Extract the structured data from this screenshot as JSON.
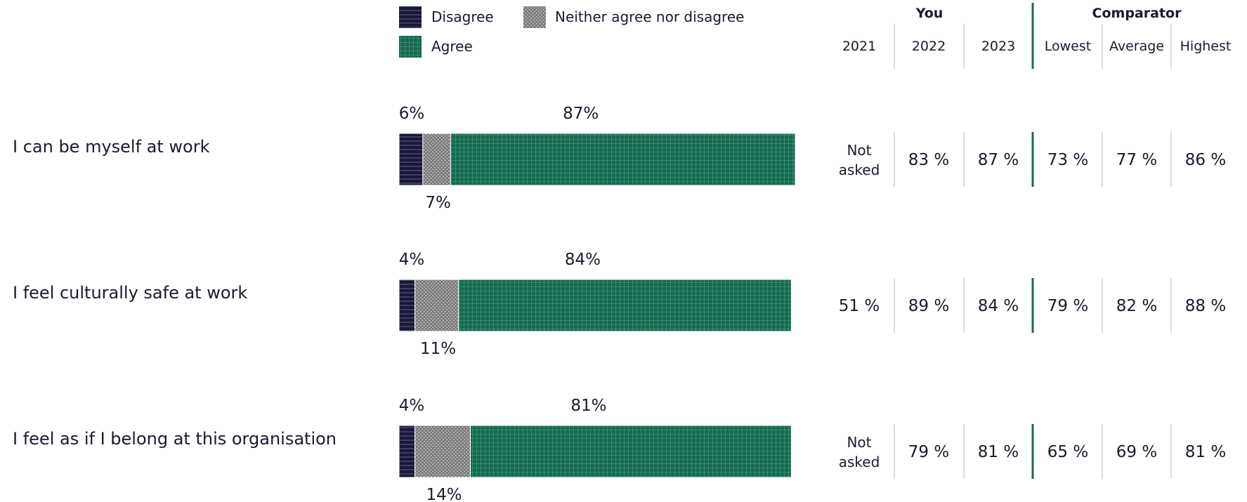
{
  "legend": [
    {
      "key": "disagree",
      "label": "Disagree",
      "color": "#1a1838"
    },
    {
      "key": "neither",
      "label": "Neither agree nor disagree",
      "color": "#808080"
    },
    {
      "key": "agree",
      "label": "Agree",
      "color": "#136b51"
    }
  ],
  "table_header": {
    "you": "You",
    "comparator": "Comparator",
    "columns": [
      "2021",
      "2022",
      "2023",
      "Lowest",
      "Average",
      "Highest"
    ]
  },
  "chart_data": {
    "type": "bar",
    "orientation": "horizontal-stacked-100",
    "categories": [
      "I can be myself at work",
      "I feel culturally safe at work",
      "I feel as if I belong at this organisation"
    ],
    "series": [
      {
        "name": "Disagree",
        "values": [
          6,
          4,
          4
        ]
      },
      {
        "name": "Neither agree nor disagree",
        "values": [
          7,
          11,
          14
        ]
      },
      {
        "name": "Agree",
        "values": [
          87,
          84,
          81
        ]
      }
    ],
    "data_labels": {
      "disagree": [
        "6%",
        "4%",
        "4%"
      ],
      "neither": [
        "7%",
        "11%",
        "14%"
      ],
      "agree": [
        "87%",
        "84%",
        "81%"
      ]
    },
    "xlim": [
      0,
      100
    ],
    "legend_position": "top-left"
  },
  "table_rows": [
    {
      "y2021": "Not asked",
      "y2022": "83 %",
      "y2023": "87 %",
      "lowest": "73 %",
      "average": "77 %",
      "highest": "86 %"
    },
    {
      "y2021": "51 %",
      "y2022": "89 %",
      "y2023": "84 %",
      "lowest": "79 %",
      "average": "82 %",
      "highest": "88 %"
    },
    {
      "y2021": "Not asked",
      "y2022": "79 %",
      "y2023": "81 %",
      "lowest": "65 %",
      "average": "69 %",
      "highest": "81 %"
    }
  ],
  "colors": {
    "disagree": "#1a1838",
    "neither": "#808080",
    "agree": "#136b51",
    "divider_accent": "#136b51",
    "divider": "#d0d0d0",
    "text": "#1a1a2e"
  }
}
